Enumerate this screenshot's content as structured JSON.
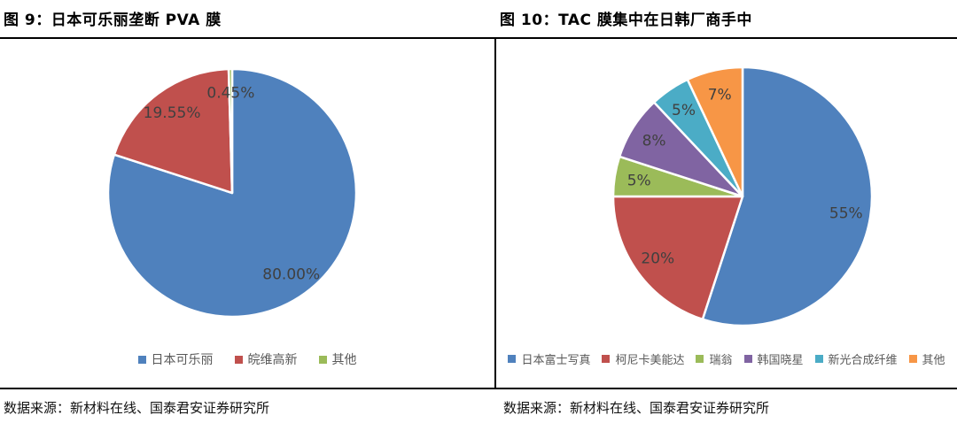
{
  "figures": [
    {
      "title": "图 9：日本可乐丽垄断 PVA 膜",
      "source": "数据来源：新材料在线、国泰君安证券研究所"
    },
    {
      "title": "图 10：TAC 膜集中在日韩厂商手中",
      "source": "数据来源：新材料在线、国泰君安证券研究所"
    }
  ],
  "chart_data": [
    {
      "type": "pie",
      "title": "图 9：日本可乐丽垄断 PVA 膜",
      "unit": "percent",
      "start_angle_deg": 0,
      "direction": "clockwise",
      "legend_position": "bottom",
      "slices": [
        {
          "label": "日本可乐丽",
          "value": 80.0,
          "display": "80.00%",
          "color": "#4F81BD"
        },
        {
          "label": "皖维高新",
          "value": 19.55,
          "display": "19.55%",
          "color": "#C0504D"
        },
        {
          "label": "其他",
          "value": 0.45,
          "display": "0.45%",
          "color": "#9BBB59"
        }
      ]
    },
    {
      "type": "pie",
      "title": "图 10：TAC 膜集中在日韩厂商手中",
      "unit": "percent",
      "start_angle_deg": 0,
      "direction": "clockwise",
      "legend_position": "bottom",
      "slices": [
        {
          "label": "日本富士写真",
          "value": 55,
          "display": "55%",
          "color": "#4F81BD"
        },
        {
          "label": "柯尼卡美能达",
          "value": 20,
          "display": "20%",
          "color": "#C0504D"
        },
        {
          "label": "瑞翁",
          "value": 5,
          "display": "5%",
          "color": "#9BBB59"
        },
        {
          "label": "韩国晓星",
          "value": 8,
          "display": "8%",
          "color": "#8064A2"
        },
        {
          "label": "新光合成纤维",
          "value": 5,
          "display": "5%",
          "color": "#4BACC6"
        },
        {
          "label": "其他",
          "value": 7,
          "display": "7%",
          "color": "#F79646"
        }
      ]
    }
  ],
  "style": {
    "background": "#FFFFFF",
    "rule_color": "#000000",
    "data_label_color": "#404040",
    "legend_text_color": "#595959",
    "slice_border_color": "#FFFFFF"
  }
}
